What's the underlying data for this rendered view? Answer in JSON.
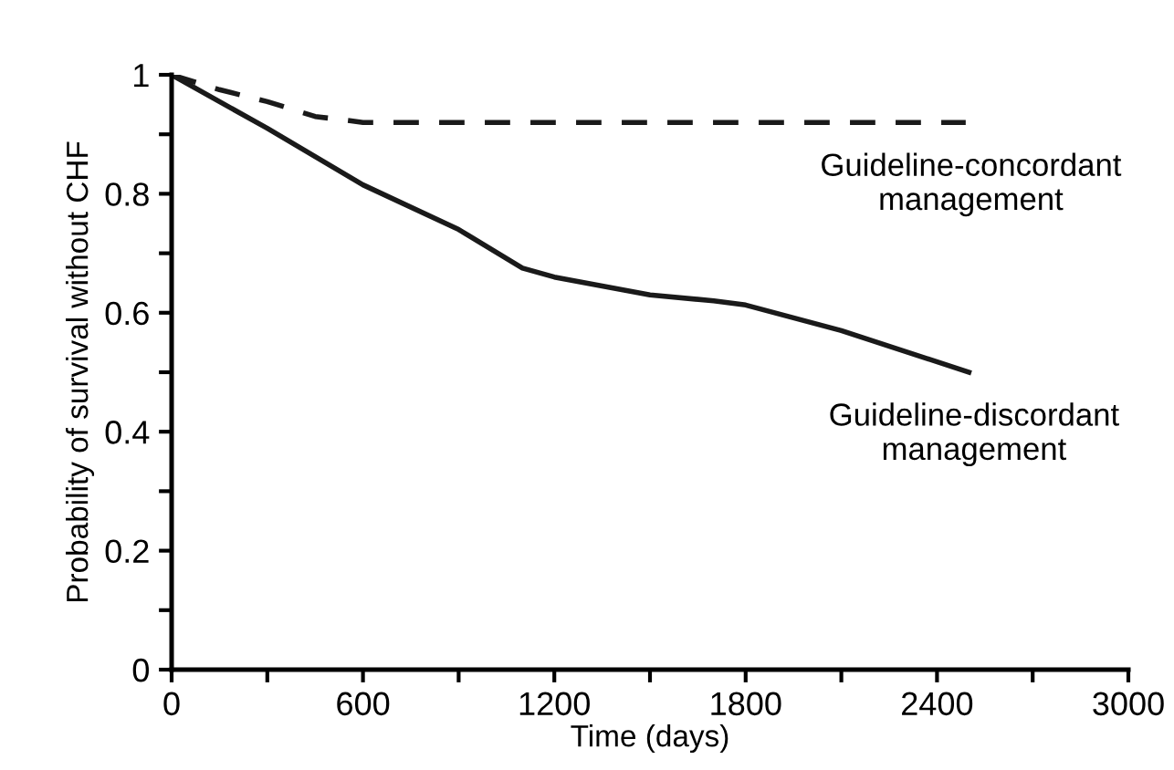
{
  "chart_data": {
    "type": "line",
    "xlabel": "Time (days)",
    "ylabel": "Probability of survival without CHF",
    "xlim": [
      0,
      3000
    ],
    "ylim": [
      0,
      1
    ],
    "xticks": [
      0,
      {
        "value": 300,
        "label": null
      },
      600,
      {
        "value": 900,
        "label": null
      },
      1200,
      {
        "value": 1500,
        "label": null
      },
      1800,
      {
        "value": 2100,
        "label": null
      },
      2400,
      {
        "value": 2700,
        "label": null
      },
      3000
    ],
    "yticks": [
      0,
      {
        "value": 0.1,
        "label": null
      },
      0.2,
      {
        "value": 0.3,
        "label": null
      },
      0.4,
      {
        "value": 0.5,
        "label": null
      },
      0.6,
      {
        "value": 0.7,
        "label": null
      },
      0.8,
      {
        "value": 0.9,
        "label": null
      },
      1
    ],
    "grid": false,
    "legend": false,
    "series": [
      {
        "name": "Guideline-concordant\nmanagement",
        "color": "#1a1a1a",
        "line_style": "dashed",
        "x": [
          0,
          150,
          300,
          450,
          600,
          900,
          2490
        ],
        "values": [
          1,
          0.975,
          0.955,
          0.93,
          0.92,
          0.92,
          0.92
        ]
      },
      {
        "name": "Guideline-discordant\nmanagement",
        "color": "#1a1a1a",
        "line_style": "solid",
        "x": [
          0,
          300,
          600,
          900,
          1100,
          1200,
          1500,
          1700,
          1800,
          2100,
          2500
        ],
        "values": [
          1,
          0.91,
          0.815,
          0.74,
          0.675,
          0.66,
          0.63,
          0.62,
          0.613,
          0.57,
          0.5
        ]
      }
    ]
  }
}
